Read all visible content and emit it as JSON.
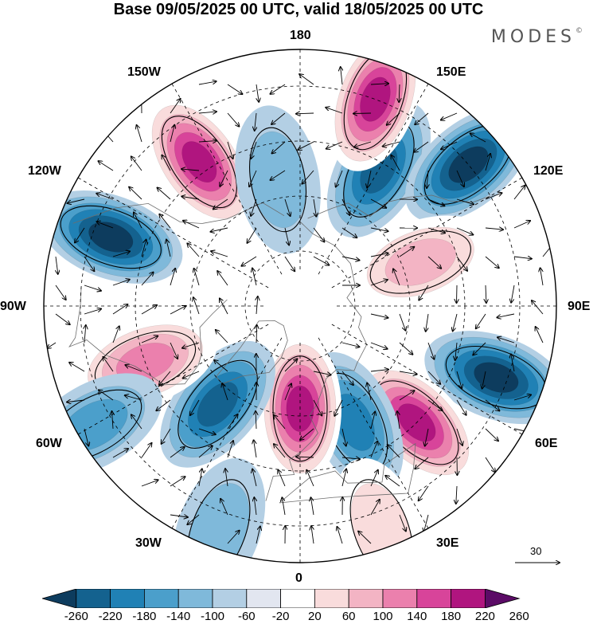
{
  "title": "Base 09/05/2025 00 UTC, valid 18/05/2025 00 UTC",
  "brand": "MODES",
  "brand_mark": "©",
  "longitude_labels": [
    "180",
    "150E",
    "120E",
    "90E",
    "60E",
    "30E",
    "0",
    "30W",
    "60W",
    "90W",
    "120W",
    "150W"
  ],
  "vector_reference": {
    "value": "30"
  },
  "colorbar": {
    "ticks": [
      "-260",
      "-220",
      "-180",
      "-140",
      "-100",
      "-60",
      "-20",
      "20",
      "60",
      "100",
      "140",
      "180",
      "220",
      "260"
    ],
    "colors": [
      "#0d3c5e",
      "#14628f",
      "#2081b5",
      "#4b9fcb",
      "#7fb9da",
      "#b3cfe4",
      "#e2e6f0",
      "#ffffff",
      "#f9dcdc",
      "#f3b4c4",
      "#eb80ad",
      "#d8449a",
      "#b0157f",
      "#5b0b66"
    ]
  },
  "anomalies": [
    {
      "lon": 150,
      "lat": 47,
      "value": -200
    },
    {
      "lon": 160,
      "lat": 30,
      "value": 220
    },
    {
      "lon": 130,
      "lat": 30,
      "value": -220
    },
    {
      "lon": 110,
      "lat": 55,
      "value": 120
    },
    {
      "lon": 70,
      "lat": 33,
      "value": -220
    },
    {
      "lon": 45,
      "lat": 45,
      "value": 240
    },
    {
      "lon": 25,
      "lat": 55,
      "value": -160
    },
    {
      "lon": 0,
      "lat": 62,
      "value": 240
    },
    {
      "lon": -40,
      "lat": 55,
      "value": -180
    },
    {
      "lon": -70,
      "lat": 45,
      "value": 140
    },
    {
      "lon": -60,
      "lat": 25,
      "value": -120
    },
    {
      "lon": -110,
      "lat": 35,
      "value": -220
    },
    {
      "lon": -145,
      "lat": 42,
      "value": 240
    },
    {
      "lon": -170,
      "lat": 55,
      "value": -60
    },
    {
      "lon": 20,
      "lat": 25,
      "value": 60
    },
    {
      "lon": -20,
      "lat": 25,
      "value": -60
    }
  ]
}
